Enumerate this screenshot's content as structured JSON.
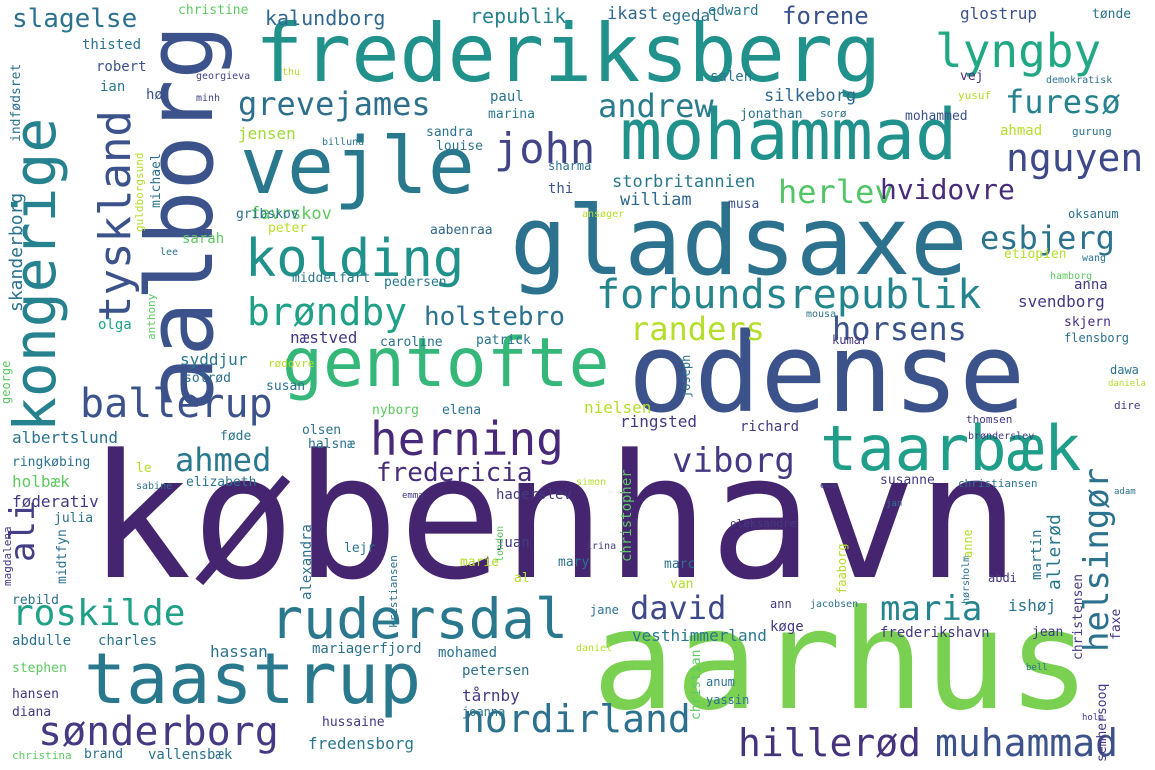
{
  "words": {
    "kobenhavn": "københavn",
    "aarhus": "aarhus",
    "odense": "odense",
    "gladsaxe": "gladsaxe",
    "aalborg": "aalborg",
    "frederiksberg": "frederiksberg",
    "mohammad": "mohammad",
    "vejle": "vejle",
    "gentofte": "gentofte",
    "taastrup": "taastrup",
    "taarbaek": "taarbæk",
    "kongerige": "kongerige",
    "lyngby": "lyngby",
    "rudersdal": "rudersdal",
    "kolding": "kolding",
    "forbundsrepublik": "forbundsrepublik",
    "herning": "herning",
    "nordirland": "nordirland",
    "tyskland": "tyskland",
    "ballerup": "ballerup",
    "sonderborg": "sønderborg",
    "roskilde": "roskilde",
    "brondby": "brøndby",
    "john": "john",
    "nguyen": "nguyen",
    "muhammad": "muhammad",
    "hillerod": "hillerød",
    "helsingor": "helsingør",
    "grevejames": "grevejames",
    "andrew": "andrew",
    "furesoe": "furesø",
    "esbjerg": "esbjerg",
    "herlev": "herlev",
    "randers": "randers",
    "horsens": "horsens",
    "viborg": "viborg",
    "david": "david",
    "maria": "maria",
    "ahmed": "ahmed",
    "ali": "ali",
    "slagelse": "slagelse",
    "forene": "forene",
    "hvidovre": "hvidovre",
    "holstebro": "holstebro",
    "fredericia": "fredericia",
    "kalundborg": "kalundborg",
    "republik": "republik",
    "ikast": "ikast",
    "egedal": "egedal",
    "edward": "edward",
    "glostrup": "glostrup",
    "tonde": "tønde",
    "christine": "christine",
    "thisted": "thisted",
    "robert": "robert",
    "georgieva": "georgieva",
    "thu": "thu",
    "saleh": "saleh",
    "vej": "vej",
    "demokratisk": "demokratisk",
    "ian": "ian",
    "hoj": "høj",
    "minh": "minh",
    "paul": "paul",
    "silkeborg": "silkeborg",
    "yusuf": "yusuf",
    "marina": "marina",
    "jonathan": "jonathan",
    "soro": "sorø",
    "mohammed": "mohammed",
    "ahmad": "ahmad",
    "gurung": "gurung",
    "jensen": "jensen",
    "billund": "billund",
    "sandra": "sandra",
    "louise": "louise",
    "sharma": "sharma",
    "thi": "thi",
    "storbritannien": "storbritannien",
    "william": "william",
    "musa": "musa",
    "ansoger": "ansøger",
    "favrskov": "favrskov",
    "gribskov": "gribskov",
    "peter": "peter",
    "aabenraa": "aabenraa",
    "oksanum": "oksanum",
    "sarah": "sarah",
    "etiopien": "etiopien",
    "lee": "lee",
    "wang": "wang",
    "hamborg": "hamborg",
    "anna": "anna",
    "middelfart": "middelfart",
    "pedersen": "pedersen",
    "svendborg": "svendborg",
    "mousa": "mousa",
    "skjern": "skjern",
    "olga": "olga",
    "naestved": "næstved",
    "caroline": "caroline",
    "patrick": "patrick",
    "kumar": "kumar",
    "flensborg": "flensborg",
    "syddjur": "syddjur",
    "rodovre": "rødovre",
    "dawa": "dawa",
    "solrod": "solrød",
    "susan": "susan",
    "daniela": "daniela",
    "nielsen": "nielsen",
    "nyborg": "nyborg",
    "elena": "elena",
    "dire": "dire",
    "ringsted": "ringsted",
    "richard": "richard",
    "thomsen": "thomsen",
    "olsen": "olsen",
    "albertslund": "albertslund",
    "fode": "føde",
    "halsnae": "halsnæ",
    "bronderslev": "brønderslev",
    "ringkobing": "ringkøbing",
    "le": "le",
    "holbaek": "holbæk",
    "sabine": "sabine",
    "elizabeth": "elizabeth",
    "simon": "simon",
    "ewa": "ewa",
    "susanne": "susanne",
    "christiansen": "christiansen",
    "haderslev": "haderslev",
    "foderativ": "føderativ",
    "emma": "emma",
    "adam": "adam",
    "julia": "julia",
    "jan": "jan",
    "oleksandre": "oleksandre",
    "juan": "juan",
    "lejr": "lejr",
    "irina": "irina",
    "marie": "marie",
    "mary": "mary",
    "marc": "marc",
    "al": "al",
    "van": "van",
    "abdi": "abdi",
    "rebild": "rebild",
    "abdulle": "abdulle",
    "jane": "jane",
    "ann": "ann",
    "jacobsen": "jacobsen",
    "ishoj": "ishøj",
    "charles": "charles",
    "vesthimmerland": "vesthimmerland",
    "koge": "køge",
    "frederikshavn": "frederikshavn",
    "jean": "jean",
    "hassan": "hassan",
    "mariagerfjord": "mariagerfjord",
    "stephen": "stephen",
    "mohamed": "mohamed",
    "daniel": "daniel",
    "petersen": "petersen",
    "bell": "bell",
    "hansen": "hansen",
    "anum": "anum",
    "diana": "diana",
    "tarnby": "tårnby",
    "yassin": "yassin",
    "hussaine": "hussaine",
    "joanna": "joanna",
    "holm": "holm",
    "christina": "christina",
    "brand": "brand",
    "vallensbaek": "vallensbæk",
    "fredensborg": "fredensborg",
    "indfodsret": "indfødsret",
    "skanderborg": "skanderborg",
    "guldborgsund": "guldborgsund",
    "michael": "michael",
    "anthony": "anthony",
    "george": "george",
    "joseph": "joseph",
    "christopher": "christopher",
    "alexandra": "alexandra",
    "kristiansen": "kristiansen",
    "london": "london",
    "midtfyn": "midtfyn",
    "magdalena": "magdalena",
    "faaborg": "faaborg",
    "horsholm": "hørsholm",
    "anne": "anne",
    "martin": "martin",
    "allerod": "allerød",
    "christensen": "christensen",
    "faxe": "faxe",
    "christian": "christian",
    "semhersooq": "semhersooq"
  }
}
